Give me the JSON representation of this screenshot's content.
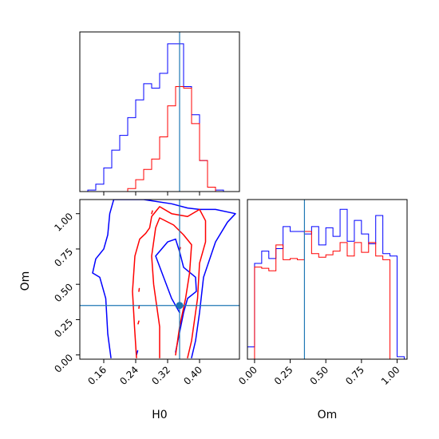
{
  "chart_data": {
    "type": "corner",
    "parameters": [
      "H0",
      "Om"
    ],
    "truth": {
      "H0": 0.35,
      "Om": 0.35,
      "color": "#1f77b4"
    },
    "series": [
      {
        "color": "#0000ff"
      },
      {
        "color": "#ff0000"
      }
    ],
    "panels": [
      {
        "id": "hist-H0",
        "type": "step-histogram",
        "xlim": [
          0.1,
          0.5
        ],
        "ylim": [
          0,
          1.08
        ],
        "bin_edges": [
          0.1,
          0.12,
          0.14,
          0.16,
          0.18,
          0.2,
          0.22,
          0.24,
          0.26,
          0.28,
          0.3,
          0.32,
          0.34,
          0.36,
          0.38,
          0.4,
          0.42,
          0.44,
          0.46,
          0.48
        ],
        "series_values": [
          [
            0.0,
            0.01,
            0.05,
            0.16,
            0.28,
            0.38,
            0.5,
            0.62,
            0.73,
            0.7,
            0.8,
            1.0,
            1.0,
            0.71,
            0.52,
            0.21,
            0.03,
            0.01,
            0.0
          ],
          [
            0.0,
            0.0,
            0.0,
            0.0,
            0.0,
            0.0,
            0.02,
            0.08,
            0.15,
            0.22,
            0.37,
            0.58,
            0.71,
            0.7,
            0.46,
            0.21,
            0.03,
            0.0,
            0.0
          ]
        ],
        "xticks": [
          0.16,
          0.24,
          0.32,
          0.4
        ]
      },
      {
        "id": "contour-H0-Om",
        "type": "contour",
        "xlabel": "H0",
        "ylabel": "Om",
        "xlim": [
          0.1,
          0.5
        ],
        "ylim": [
          -0.03,
          1.1
        ],
        "xticks": [
          0.16,
          0.24,
          0.32,
          0.4
        ],
        "xtick_labels": [
          "0.16",
          "0.24",
          "0.32",
          "0.40"
        ],
        "yticks": [
          0.0,
          0.25,
          0.5,
          0.75,
          1.0
        ],
        "ytick_labels": [
          "0.00",
          "0.25",
          "0.50",
          "0.75",
          "1.00"
        ],
        "series_contours": [
          [
            [
              [
                0.178,
                -0.02
              ],
              [
                0.17,
                0.15
              ],
              [
                0.165,
                0.4
              ],
              [
                0.15,
                0.55
              ],
              [
                0.132,
                0.58
              ],
              [
                0.14,
                0.68
              ],
              [
                0.16,
                0.75
              ],
              [
                0.17,
                0.85
              ],
              [
                0.175,
                1.0
              ],
              [
                0.185,
                1.1
              ],
              [
                0.26,
                1.1
              ],
              [
                0.33,
                1.07
              ],
              [
                0.37,
                1.04
              ],
              [
                0.4,
                1.03
              ],
              [
                0.44,
                1.03
              ],
              [
                0.49,
                1.0
              ],
              [
                0.47,
                0.94
              ],
              [
                0.44,
                0.8
              ],
              [
                0.41,
                0.55
              ],
              [
                0.4,
                0.3
              ],
              [
                0.39,
                0.1
              ],
              [
                0.38,
                -0.02
              ]
            ],
            [
              [
                0.242,
                0.0
              ],
              [
                0.245,
                0.03
              ]
            ],
            [
              [
                0.35,
                0.3
              ],
              [
                0.33,
                0.4
              ],
              [
                0.31,
                0.55
              ],
              [
                0.29,
                0.7
              ],
              [
                0.32,
                0.8
              ],
              [
                0.34,
                0.82
              ],
              [
                0.35,
                0.73
              ],
              [
                0.36,
                0.62
              ],
              [
                0.39,
                0.55
              ],
              [
                0.392,
                0.45
              ],
              [
                0.37,
                0.4
              ],
              [
                0.36,
                0.3
              ],
              [
                0.34,
                0.02
              ]
            ]
          ],
          [
            [
              [
                0.242,
                -0.02
              ],
              [
                0.237,
                0.2
              ],
              [
                0.232,
                0.45
              ],
              [
                0.238,
                0.7
              ],
              [
                0.25,
                0.82
              ],
              [
                0.265,
                0.86
              ],
              [
                0.275,
                0.9
              ],
              [
                0.28,
                0.98
              ],
              [
                0.3,
                1.05
              ],
              [
                0.33,
                1.0
              ],
              [
                0.37,
                0.98
              ],
              [
                0.4,
                1.03
              ],
              [
                0.415,
                0.95
              ],
              [
                0.415,
                0.8
              ],
              [
                0.4,
                0.65
              ],
              [
                0.395,
                0.4
              ],
              [
                0.38,
                0.1
              ],
              [
                0.37,
                -0.02
              ]
            ],
            [
              [
                0.3,
                -0.02
              ],
              [
                0.3,
                0.2
              ],
              [
                0.285,
                0.5
              ],
              [
                0.28,
                0.7
              ],
              [
                0.29,
                0.9
              ],
              [
                0.3,
                0.97
              ],
              [
                0.335,
                0.92
              ],
              [
                0.36,
                0.85
              ],
              [
                0.38,
                0.78
              ],
              [
                0.375,
                0.58
              ],
              [
                0.365,
                0.4
              ],
              [
                0.35,
                0.2
              ],
              [
                0.34,
                0.0
              ]
            ],
            [
              [
                0.248,
                0.45
              ],
              [
                0.249,
                0.47
              ]
            ],
            [
              [
                0.248,
                0.33
              ],
              [
                0.249,
                0.35
              ]
            ],
            [
              [
                0.246,
                0.22
              ],
              [
                0.248,
                0.24
              ]
            ],
            [
              [
                0.35,
                0.74
              ],
              [
                0.352,
                0.76
              ]
            ],
            [
              [
                0.28,
                1.0
              ],
              [
                0.282,
                1.02
              ]
            ]
          ]
        ],
        "truth_point": [
          0.35,
          0.35
        ]
      },
      {
        "id": "hist-Om",
        "type": "step-histogram",
        "xlabel": "Om",
        "xlim": [
          -0.05,
          1.07
        ],
        "ylim": [
          0,
          1.3
        ],
        "xticks": [
          0.0,
          0.25,
          0.5,
          0.75,
          1.0
        ],
        "xtick_labels": [
          "0.00",
          "0.25",
          "0.50",
          "0.75",
          "1.00"
        ],
        "bin_edges": [
          -0.05,
          0.0,
          0.05,
          0.1,
          0.15,
          0.2,
          0.25,
          0.3,
          0.35,
          0.4,
          0.45,
          0.5,
          0.55,
          0.6,
          0.65,
          0.7,
          0.75,
          0.8,
          0.85,
          0.9,
          0.95,
          1.0,
          1.05
        ],
        "series_values": [
          [
            0.1,
            0.78,
            0.88,
            0.82,
            0.9,
            1.08,
            1.04,
            1.04,
            1.02,
            1.08,
            0.93,
            1.07,
            1.0,
            1.22,
            0.96,
            1.13,
            1.02,
            0.94,
            1.17,
            0.86,
            0.84,
            0.02
          ],
          [
            0.0,
            0.75,
            0.74,
            0.72,
            0.93,
            0.81,
            0.82,
            0.81,
            1.04,
            0.86,
            0.83,
            0.85,
            0.88,
            0.95,
            0.84,
            0.95,
            0.87,
            0.95,
            0.84,
            0.81,
            0.0,
            0.0
          ]
        ]
      }
    ]
  }
}
